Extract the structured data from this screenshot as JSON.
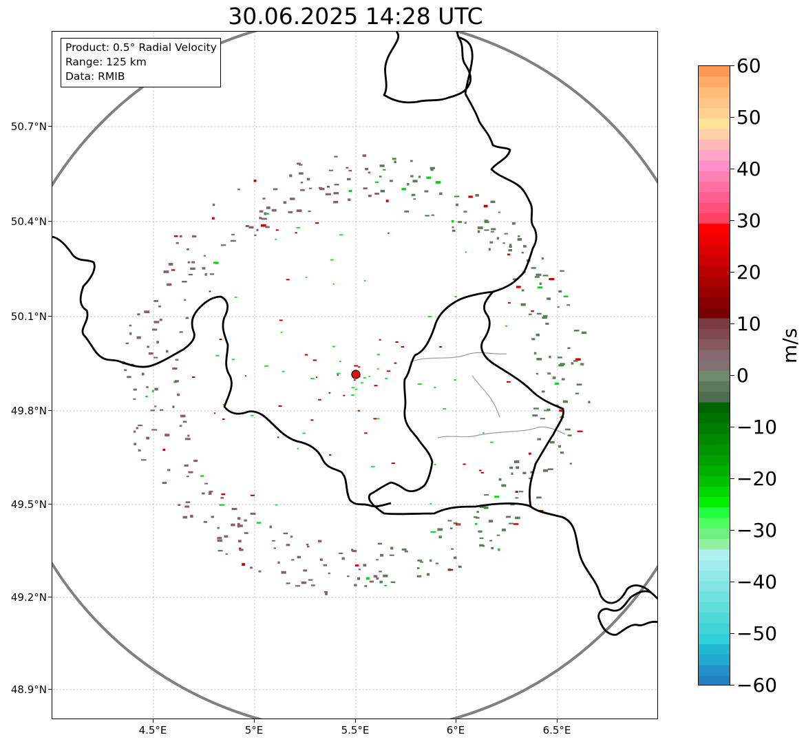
{
  "title": "30.06.2025 14:28 UTC",
  "info": {
    "product": "Product: 0.5° Radial Velocity",
    "range": "Range: 125 km",
    "source": "Data: RMIB"
  },
  "axes": {
    "y_ticks": [
      "50.7°N",
      "50.4°N",
      "50.1°N",
      "49.8°N",
      "49.5°N",
      "49.2°N",
      "48.9°N"
    ],
    "x_ticks": [
      "4.5°E",
      "5°E",
      "5.5°E",
      "6°E",
      "6.5°E"
    ]
  },
  "colorbar": {
    "unit": "m/s",
    "ticks": [
      "60",
      "50",
      "40",
      "30",
      "20",
      "10",
      "0",
      "−10",
      "−20",
      "−30",
      "−40",
      "−50",
      "−60"
    ],
    "min": -60,
    "max": 60
  },
  "colors": {
    "approaching": "#5a7f58",
    "receding": "#86606a",
    "radar_site": "#e01010",
    "range_ring": "#808080",
    "border": "#000000"
  }
}
